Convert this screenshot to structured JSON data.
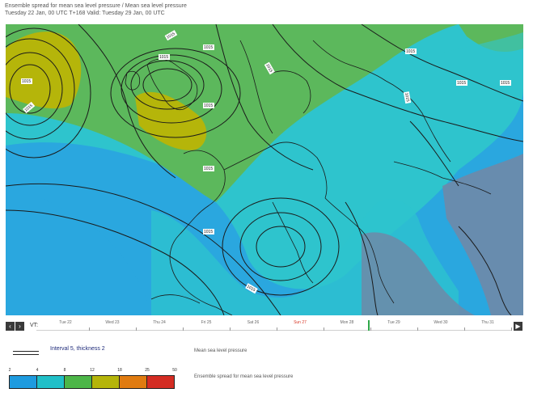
{
  "header": {
    "title": "Ensemble spread for mean sea level pressure / Mean sea level pressure",
    "subtitle": "Tuesday 22 Jan, 00 UTC T+168 Valid: Tuesday 29 Jan, 00 UTC"
  },
  "map": {
    "isobar_labels": [
      "1015",
      "1015",
      "1015",
      "1015",
      "1015",
      "1015",
      "1015",
      "1015",
      "1015",
      "1015",
      "1015",
      "1015",
      "1015",
      "1015"
    ],
    "colors": {
      "sea_blue": "#2aa7df",
      "cyan": "#2ec4cd",
      "green": "#5cb85c",
      "olive": "#b5b50a",
      "land_overlay": "#6f8aa8",
      "contour": "#1a1a1a"
    }
  },
  "timeline": {
    "vt_label": "VT:",
    "prev_icon": "chevron-left-icon",
    "next_icon": "chevron-right-icon",
    "play_icon": "play-icon",
    "days": [
      "Tue 22",
      "Wed 23",
      "Thu 24",
      "Fri 25",
      "Sat 26",
      "Sun 27",
      "Mon 28",
      "Tue 29",
      "Wed 30",
      "Thu 31"
    ],
    "highlight_day": "Sun 27",
    "selected_day": "Tue 29"
  },
  "legend": {
    "interval_text": "Interval 5, thickness 2",
    "mslp_label": "Mean sea level pressure",
    "spread_label": "Ensemble spread for mean sea level pressure",
    "scale_labels": [
      "2",
      "4",
      "8",
      "12",
      "18",
      "25",
      "50"
    ],
    "scale_colors": [
      "#1e9bdf",
      "#20c0c8",
      "#4cb648",
      "#b5b50a",
      "#e07b10",
      "#d42c23"
    ]
  }
}
